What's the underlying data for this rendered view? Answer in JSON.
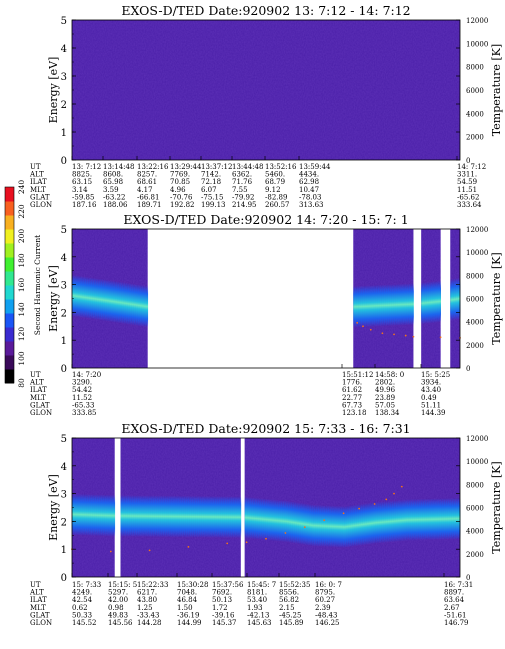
{
  "colorbar": {
    "label": "Second Harmonic Current",
    "ticks": [
      "80",
      "100",
      "120",
      "140",
      "160",
      "180",
      "200",
      "220",
      "240"
    ],
    "colors": [
      "#000000",
      "#3a0a5a",
      "#5a1a9a",
      "#3a2bd0",
      "#1a55f5",
      "#10a0f0",
      "#20d8d0",
      "#30e890",
      "#40f030",
      "#a0f020",
      "#f0f020",
      "#f8b020",
      "#f86020",
      "#e81020"
    ]
  },
  "chart_data": [
    {
      "type": "heatmap",
      "title": "EXOS-D/TED   Date:920902  13: 7:12 - 14: 7:12",
      "ylabel": "Energy [eV]",
      "y2label": "Temperature [K]",
      "ylim": [
        0,
        5
      ],
      "y2lim": [
        0,
        12000
      ],
      "yticks": [
        "0",
        "1",
        "2",
        "3",
        "4",
        "5"
      ],
      "y2ticks": [
        "0",
        "2000",
        "4000",
        "6000",
        "8000",
        "10000",
        "12000"
      ],
      "data_segments": [
        [
          0,
          1
        ]
      ],
      "band": null,
      "temperature_points": [],
      "table": {
        "row_labels": [
          "UT",
          "ALT",
          "ILAT",
          "MLT",
          "GLAT",
          "GLON"
        ],
        "columns": [
          [
            "13: 7:12",
            "8825.",
            "63.15",
            "3.14",
            "-59.85",
            "187.16"
          ],
          [
            "13:14:48",
            "8608.",
            "65.98",
            "3.59",
            "-63.22",
            "188.06"
          ],
          [
            "13:22:16",
            "8257.",
            "68.61",
            "4.17",
            "-66.81",
            "189.71"
          ],
          [
            "13:29:44",
            "7769.",
            "70.85",
            "4.96",
            "-70.76",
            "192.82"
          ],
          [
            "13:37:12",
            "7142.",
            "72.18",
            "6.07",
            "-75.15",
            "199.13"
          ],
          [
            "13:44:48",
            "6362.",
            "71.76",
            "7.55",
            "-79.92",
            "214.95"
          ],
          [
            "13:52:16",
            "5460.",
            "68.79",
            "9.12",
            "-82.89",
            "260.57"
          ],
          [
            "13:59:44",
            "4434.",
            "62.98",
            "10.47",
            "-78.03",
            "313.63"
          ],
          [
            "14: 7:12",
            "3311.",
            "54.59",
            "11.51",
            "-65.62",
            "333.64"
          ]
        ]
      }
    },
    {
      "type": "heatmap",
      "title": "EXOS-D/TED   Date:920902  14: 7:20 - 15: 7: 1",
      "ylabel": "Energy [eV]",
      "y2label": "Temperature [K]",
      "ylim": [
        0,
        5
      ],
      "y2lim": [
        0,
        12000
      ],
      "yticks": [
        "0",
        "1",
        "2",
        "3",
        "4",
        "5"
      ],
      "y2ticks": [
        "0",
        "2000",
        "4000",
        "6000",
        "8000",
        "10000",
        "12000"
      ],
      "data_segments": [
        [
          0,
          0.195
        ],
        [
          0.725,
          0.88
        ],
        [
          0.9,
          0.95
        ],
        [
          0.975,
          1
        ]
      ],
      "band": [
        [
          0,
          2.6
        ],
        [
          0.05,
          2.5
        ],
        [
          0.1,
          2.4
        ],
        [
          0.195,
          2.2
        ],
        [
          0.725,
          2.2
        ],
        [
          0.8,
          2.25
        ],
        [
          0.88,
          2.3
        ],
        [
          0.95,
          2.4
        ],
        [
          1,
          2.5
        ]
      ],
      "temperature_points": [
        [
          0.735,
          3900
        ],
        [
          0.75,
          3600
        ],
        [
          0.77,
          3300
        ],
        [
          0.8,
          3000
        ],
        [
          0.83,
          2900
        ],
        [
          0.86,
          2800
        ],
        [
          0.88,
          2700
        ],
        [
          0.95,
          2650
        ],
        [
          1,
          2600
        ]
      ],
      "table": {
        "row_labels": [
          "UT",
          "ALT",
          "ILAT",
          "MLT",
          "GLAT",
          "GLON"
        ],
        "columns": [
          [
            "14: 7:20",
            "3290.",
            "54.42",
            "11.52",
            "-65.33",
            "333.85"
          ],
          [
            "15:51:12",
            "1776.",
            "61.62",
            "22.77",
            "67.73",
            "123.18"
          ],
          [
            "14:58: 0",
            "2802.",
            "49.96",
            "23.89",
            "57.05",
            "138.34"
          ],
          [
            "15: 5:25",
            "3934.",
            "43.40",
            "0.49",
            "51.11",
            "144.39"
          ]
        ]
      }
    },
    {
      "type": "heatmap",
      "title": "EXOS-D/TED   Date:920902  15: 7:33 - 16: 7:31",
      "ylabel": "Energy [eV]",
      "y2label": "Temperature [K]",
      "ylim": [
        0,
        5
      ],
      "y2lim": [
        0,
        12000
      ],
      "yticks": [
        "0",
        "1",
        "2",
        "3",
        "4",
        "5"
      ],
      "y2ticks": [
        "0",
        "2000",
        "4000",
        "6000",
        "8000",
        "10000",
        "12000"
      ],
      "data_segments": [
        [
          0,
          0.11
        ],
        [
          0.125,
          0.435
        ],
        [
          0.445,
          1
        ]
      ],
      "band": [
        [
          0,
          2.25
        ],
        [
          0.11,
          2.2
        ],
        [
          0.435,
          2.15
        ],
        [
          0.55,
          2.0
        ],
        [
          0.62,
          1.85
        ],
        [
          0.7,
          1.8
        ],
        [
          0.78,
          1.95
        ],
        [
          0.86,
          2.05
        ],
        [
          1,
          2.1
        ]
      ],
      "temperature_points": [
        [
          0.0,
          2400
        ],
        [
          0.1,
          2200
        ],
        [
          0.2,
          2300
        ],
        [
          0.3,
          2600
        ],
        [
          0.4,
          2900
        ],
        [
          0.45,
          3000
        ],
        [
          0.5,
          3300
        ],
        [
          0.55,
          3800
        ],
        [
          0.6,
          4300
        ],
        [
          0.65,
          4900
        ],
        [
          0.7,
          5500
        ],
        [
          0.74,
          5900
        ],
        [
          0.78,
          6300
        ],
        [
          0.81,
          6700
        ],
        [
          0.83,
          7200
        ],
        [
          0.85,
          7800
        ]
      ],
      "table": {
        "row_labels": [
          "UT",
          "ALT",
          "ILAT",
          "MLT",
          "GLAT",
          "GLON"
        ],
        "columns": [
          [
            "15: 7:33",
            "4249.",
            "42.54",
            "0.62",
            "50.33",
            "145.52"
          ],
          [
            "15:15: 5",
            "5297.",
            "42.00",
            "0.98",
            "49.83",
            "145.56"
          ],
          [
            "15:22:33",
            "6217.",
            "43.80",
            "1.25",
            "-33.43",
            "144.28"
          ],
          [
            "15:30:28",
            "7048.",
            "46.84",
            "1.50",
            "-36.19",
            "144.99"
          ],
          [
            "15:37:56",
            "7692.",
            "50.13",
            "1.72",
            "-39.16",
            "145.37"
          ],
          [
            "15:45: 7",
            "8181.",
            "53.40",
            "1.93",
            "-42.13",
            "145.63"
          ],
          [
            "15:52:35",
            "8556.",
            "56.82",
            "2.15",
            "-45.25",
            "145.89"
          ],
          [
            "16: 0: 7",
            "8795.",
            "60.27",
            "2.39",
            "-48.43",
            "146.25"
          ],
          [
            "16: 7:31",
            "8897.",
            "63.64",
            "2.67",
            "-51.61",
            "146.79"
          ]
        ]
      }
    }
  ]
}
